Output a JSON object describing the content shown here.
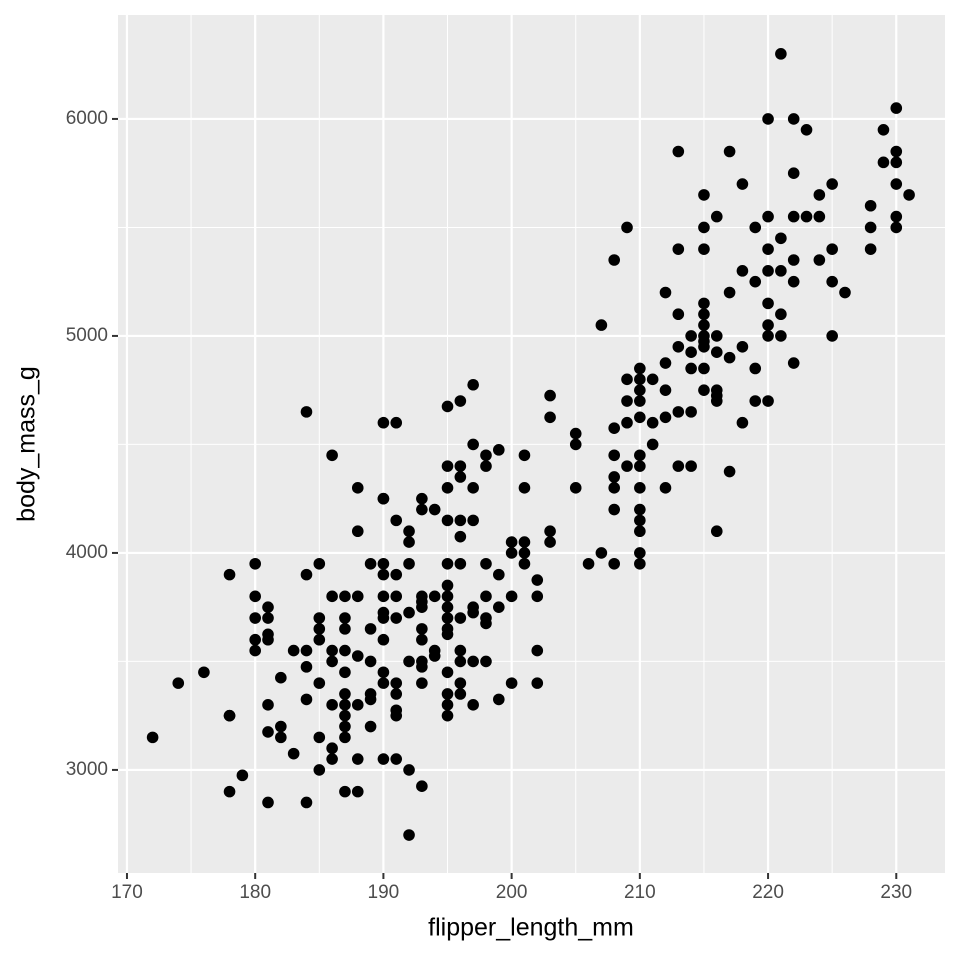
{
  "chart_data": {
    "type": "scatter",
    "x_label": "flipper_length_mm",
    "y_label": "body_mass_g",
    "color": "#000000",
    "grid": true,
    "xlim": [
      169.3,
      233.8
    ],
    "ylim": [
      2525,
      6479
    ],
    "xticks": [
      170,
      180,
      190,
      200,
      210,
      220,
      230
    ],
    "yticks": [
      3000,
      4000,
      5000,
      6000
    ],
    "x_minor_grid": [
      175,
      185,
      195,
      205,
      215,
      225
    ],
    "y_minor_grid": [
      3500,
      4500,
      5500
    ],
    "x": [
      172,
      174,
      176,
      178,
      178,
      178,
      178,
      179,
      180,
      180,
      180,
      180,
      180,
      181,
      181,
      181,
      181,
      181,
      181,
      181,
      182,
      182,
      182,
      183,
      183,
      184,
      184,
      184,
      184,
      184,
      184,
      185,
      185,
      185,
      185,
      185,
      185,
      185,
      186,
      186,
      186,
      186,
      186,
      186,
      186,
      187,
      187,
      187,
      187,
      187,
      187,
      187,
      187,
      187,
      187,
      187,
      188,
      188,
      188,
      188,
      188,
      188,
      188,
      189,
      189,
      189,
      189,
      189,
      189,
      190,
      190,
      190,
      190,
      190,
      190,
      190,
      190,
      190,
      190,
      190,
      190,
      191,
      191,
      191,
      191,
      191,
      191,
      191,
      191,
      191,
      191,
      192,
      192,
      192,
      192,
      192,
      192,
      192,
      193,
      193,
      193,
      193,
      193,
      193,
      193,
      193,
      193,
      193,
      193,
      194,
      194,
      194,
      194,
      195,
      195,
      195,
      195,
      195,
      195,
      195,
      195,
      195,
      195,
      195,
      195,
      195,
      195,
      195,
      196,
      196,
      196,
      196,
      196,
      196,
      196,
      196,
      196,
      196,
      196,
      197,
      197,
      197,
      197,
      197,
      197,
      197,
      197,
      198,
      198,
      198,
      198,
      198,
      198,
      198,
      199,
      199,
      199,
      199,
      200,
      200,
      200,
      200,
      201,
      201,
      201,
      201,
      201,
      202,
      202,
      202,
      202,
      203,
      203,
      203,
      203,
      205,
      205,
      205,
      206,
      207,
      207,
      208,
      208,
      208,
      208,
      208,
      208,
      208,
      209,
      209,
      209,
      209,
      209,
      210,
      210,
      210,
      210,
      210,
      210,
      210,
      210,
      210,
      210,
      210,
      210,
      210,
      211,
      211,
      211,
      212,
      212,
      212,
      212,
      212,
      213,
      213,
      213,
      213,
      213,
      213,
      214,
      214,
      214,
      214,
      214,
      215,
      215,
      215,
      215,
      215,
      215,
      215,
      215,
      215,
      215,
      215,
      216,
      216,
      216,
      216,
      216,
      216,
      216,
      217,
      217,
      217,
      217,
      218,
      218,
      218,
      218,
      219,
      219,
      219,
      219,
      220,
      220,
      220,
      220,
      220,
      220,
      220,
      220,
      221,
      221,
      221,
      221,
      221,
      222,
      222,
      222,
      222,
      222,
      222,
      223,
      223,
      224,
      224,
      224,
      225,
      225,
      225,
      225,
      226,
      228,
      228,
      228,
      229,
      229,
      230,
      230,
      230,
      230,
      230,
      230,
      231
    ],
    "values": [
      3150,
      3400,
      3450,
      3900,
      3250,
      3250,
      2900,
      2975,
      3950,
      3800,
      3700,
      3600,
      3550,
      3750,
      3700,
      3625,
      3600,
      3300,
      3175,
      2850,
      3200,
      3150,
      3425,
      3550,
      3075,
      4650,
      3900,
      3550,
      3475,
      3325,
      2850,
      3950,
      3700,
      3650,
      3600,
      3400,
      3150,
      3000,
      4450,
      3800,
      3550,
      3500,
      3300,
      3100,
      3050,
      3800,
      3700,
      3650,
      3550,
      3450,
      3350,
      3300,
      3250,
      3200,
      3150,
      2900,
      4300,
      4100,
      3800,
      3525,
      3300,
      3050,
      2900,
      3950,
      3650,
      3500,
      3350,
      3325,
      3200,
      4600,
      4250,
      4250,
      3950,
      3900,
      3800,
      3725,
      3700,
      3600,
      3450,
      3400,
      3050,
      4600,
      4150,
      3900,
      3800,
      3700,
      3400,
      3275,
      3250,
      3050,
      3350,
      4100,
      4050,
      3950,
      3725,
      3500,
      3000,
      2700,
      4250,
      4200,
      3800,
      3775,
      3750,
      3650,
      3600,
      3500,
      3475,
      3400,
      2925,
      4200,
      3800,
      3550,
      3525,
      4675,
      4400,
      4300,
      4150,
      3950,
      3850,
      3800,
      3750,
      3700,
      3650,
      3625,
      3450,
      3350,
      3300,
      3250,
      4700,
      4400,
      4350,
      4150,
      4075,
      3950,
      3700,
      3550,
      3500,
      3400,
      3350,
      4775,
      4500,
      4300,
      4150,
      3750,
      3725,
      3500,
      3300,
      4450,
      4400,
      3800,
      3700,
      3675,
      3500,
      3950,
      4475,
      3900,
      3750,
      3325,
      4050,
      4000,
      3800,
      3400,
      4450,
      4300,
      4050,
      4000,
      3950,
      3875,
      3800,
      3550,
      3400,
      4725,
      4625,
      4100,
      4050,
      4550,
      4500,
      4300,
      3950,
      5050,
      4000,
      5350,
      4575,
      4450,
      4350,
      4300,
      4200,
      3950,
      5500,
      4800,
      4700,
      4600,
      4400,
      4850,
      4800,
      4750,
      4700,
      4625,
      4450,
      4400,
      4300,
      4200,
      4150,
      4100,
      4000,
      3950,
      4800,
      4600,
      4500,
      5200,
      4875,
      4750,
      4625,
      4300,
      5850,
      5400,
      5100,
      4950,
      4650,
      4400,
      5000,
      4925,
      4850,
      4650,
      4400,
      5650,
      5500,
      5400,
      5150,
      5100,
      5050,
      5000,
      4975,
      4850,
      4750,
      4950,
      5550,
      5000,
      4925,
      4750,
      4725,
      4700,
      4100,
      5850,
      5200,
      4900,
      4375,
      5700,
      5300,
      4950,
      4600,
      5500,
      5250,
      4850,
      4700,
      6000,
      5550,
      5400,
      5300,
      5150,
      5050,
      5000,
      4700,
      6300,
      5450,
      5300,
      5000,
      5100,
      6000,
      5750,
      5550,
      5350,
      5250,
      4875,
      5950,
      5550,
      5650,
      5550,
      5350,
      5700,
      5400,
      5250,
      5000,
      5200,
      5600,
      5500,
      5400,
      5950,
      5800,
      6050,
      5850,
      5800,
      5700,
      5550,
      5500,
      5650
    ]
  }
}
